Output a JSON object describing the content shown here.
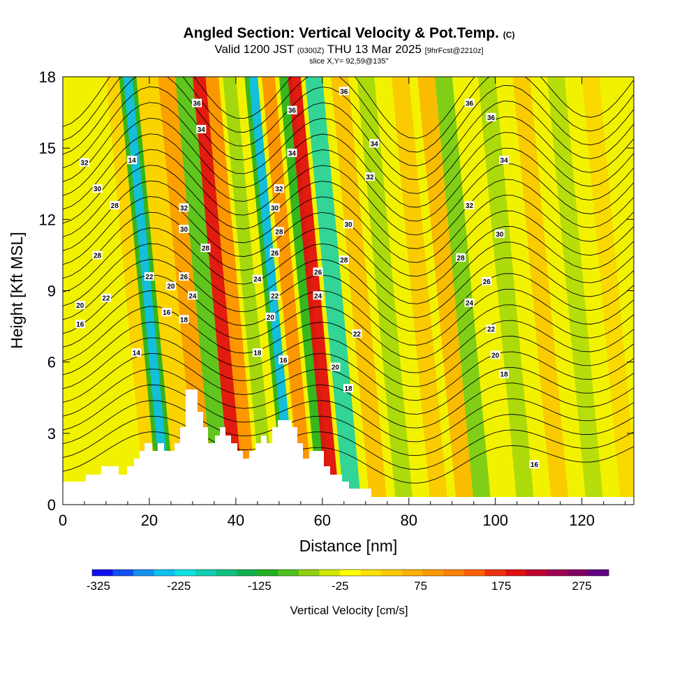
{
  "title": {
    "main": "Angled Section: Vertical Velocity & Pot.Temp.",
    "main_unit": "(C)",
    "valid_prefix": "Valid 1200 JST",
    "valid_utc": "(0300Z)",
    "valid_date": "THU 13 Mar 2025",
    "valid_fcst": "[9hrFcst@2210z]",
    "slice": "slice X,Y= 92,59@135°"
  },
  "chart_data": {
    "type": "heatmap",
    "xlabel": "Distance [nm]",
    "ylabel": "Height [Kft MSL]",
    "xlim": [
      0,
      132
    ],
    "ylim": [
      0,
      18
    ],
    "x_ticks": [
      "0",
      "20",
      "40",
      "60",
      "80",
      "100",
      "120"
    ],
    "y_ticks": [
      "0",
      "3",
      "6",
      "9",
      "12",
      "15",
      "18"
    ],
    "colorbar": {
      "label": "Vertical Velocity [cm/s]",
      "tick_labels": [
        "-325",
        "-225",
        "-125",
        "-25",
        "75",
        "175",
        "275"
      ],
      "colors": [
        "#1010f0",
        "#1050f0",
        "#1090f0",
        "#10c0f0",
        "#10e0e0",
        "#10d0b0",
        "#10c080",
        "#10b050",
        "#20b020",
        "#50c020",
        "#90d010",
        "#d0e800",
        "#ffff00",
        "#ffe000",
        "#ffc800",
        "#ffb000",
        "#ff9800",
        "#ff8000",
        "#ff6000",
        "#f03010",
        "#e01010",
        "#c00030",
        "#a00050",
        "#800060",
        "#600080"
      ]
    },
    "contours": [
      {
        "level": "14",
        "x": 17,
        "y": 6.4
      },
      {
        "level": "14",
        "x": 16,
        "y": 14.5
      },
      {
        "level": "16",
        "x": 4,
        "y": 7.6
      },
      {
        "level": "16",
        "x": 24,
        "y": 8.1
      },
      {
        "level": "18",
        "x": 28,
        "y": 7.8
      },
      {
        "level": "20",
        "x": 4,
        "y": 8.4
      },
      {
        "level": "20",
        "x": 25,
        "y": 9.2
      },
      {
        "level": "22",
        "x": 10,
        "y": 8.7
      },
      {
        "level": "22",
        "x": 20,
        "y": 9.6
      },
      {
        "level": "24",
        "x": 30,
        "y": 8.8
      },
      {
        "level": "26",
        "x": 28,
        "y": 9.6
      },
      {
        "level": "28",
        "x": 8,
        "y": 10.5
      },
      {
        "level": "28",
        "x": 12,
        "y": 12.6
      },
      {
        "level": "30",
        "x": 8,
        "y": 13.3
      },
      {
        "level": "30",
        "x": 28,
        "y": 11.6
      },
      {
        "level": "28",
        "x": 33,
        "y": 10.8
      },
      {
        "level": "32",
        "x": 5,
        "y": 14.4
      },
      {
        "level": "32",
        "x": 28,
        "y": 12.5
      },
      {
        "level": "34",
        "x": 32,
        "y": 15.8
      },
      {
        "level": "36",
        "x": 31,
        "y": 16.9
      },
      {
        "level": "30",
        "x": 49,
        "y": 12.5
      },
      {
        "level": "28",
        "x": 50,
        "y": 11.5
      },
      {
        "level": "26",
        "x": 49,
        "y": 10.6
      },
      {
        "level": "24",
        "x": 45,
        "y": 9.5
      },
      {
        "level": "22",
        "x": 49,
        "y": 8.8
      },
      {
        "level": "20",
        "x": 48,
        "y": 7.9
      },
      {
        "level": "18",
        "x": 45,
        "y": 6.4
      },
      {
        "level": "16",
        "x": 51,
        "y": 6.1
      },
      {
        "level": "32",
        "x": 50,
        "y": 13.3
      },
      {
        "level": "34",
        "x": 53,
        "y": 14.8
      },
      {
        "level": "36",
        "x": 53,
        "y": 16.6
      },
      {
        "level": "26",
        "x": 59,
        "y": 9.8
      },
      {
        "level": "24",
        "x": 59,
        "y": 8.8
      },
      {
        "level": "20",
        "x": 63,
        "y": 5.8
      },
      {
        "level": "18",
        "x": 66,
        "y": 4.9
      },
      {
        "level": "22",
        "x": 68,
        "y": 7.2
      },
      {
        "level": "28",
        "x": 65,
        "y": 10.3
      },
      {
        "level": "30",
        "x": 66,
        "y": 11.8
      },
      {
        "level": "32",
        "x": 71,
        "y": 13.8
      },
      {
        "level": "34",
        "x": 72,
        "y": 15.2
      },
      {
        "level": "36",
        "x": 65,
        "y": 17.4
      },
      {
        "level": "36",
        "x": 94,
        "y": 16.9
      },
      {
        "level": "36",
        "x": 99,
        "y": 16.3
      },
      {
        "level": "34",
        "x": 102,
        "y": 14.5
      },
      {
        "level": "32",
        "x": 94,
        "y": 12.6
      },
      {
        "level": "30",
        "x": 101,
        "y": 11.4
      },
      {
        "level": "28",
        "x": 92,
        "y": 10.4
      },
      {
        "level": "26",
        "x": 98,
        "y": 9.4
      },
      {
        "level": "24",
        "x": 94,
        "y": 8.5
      },
      {
        "level": "22",
        "x": 99,
        "y": 7.4
      },
      {
        "level": "20",
        "x": 100,
        "y": 6.3
      },
      {
        "level": "18",
        "x": 102,
        "y": 5.5
      },
      {
        "level": "16",
        "x": 109,
        "y": 1.7
      }
    ]
  }
}
